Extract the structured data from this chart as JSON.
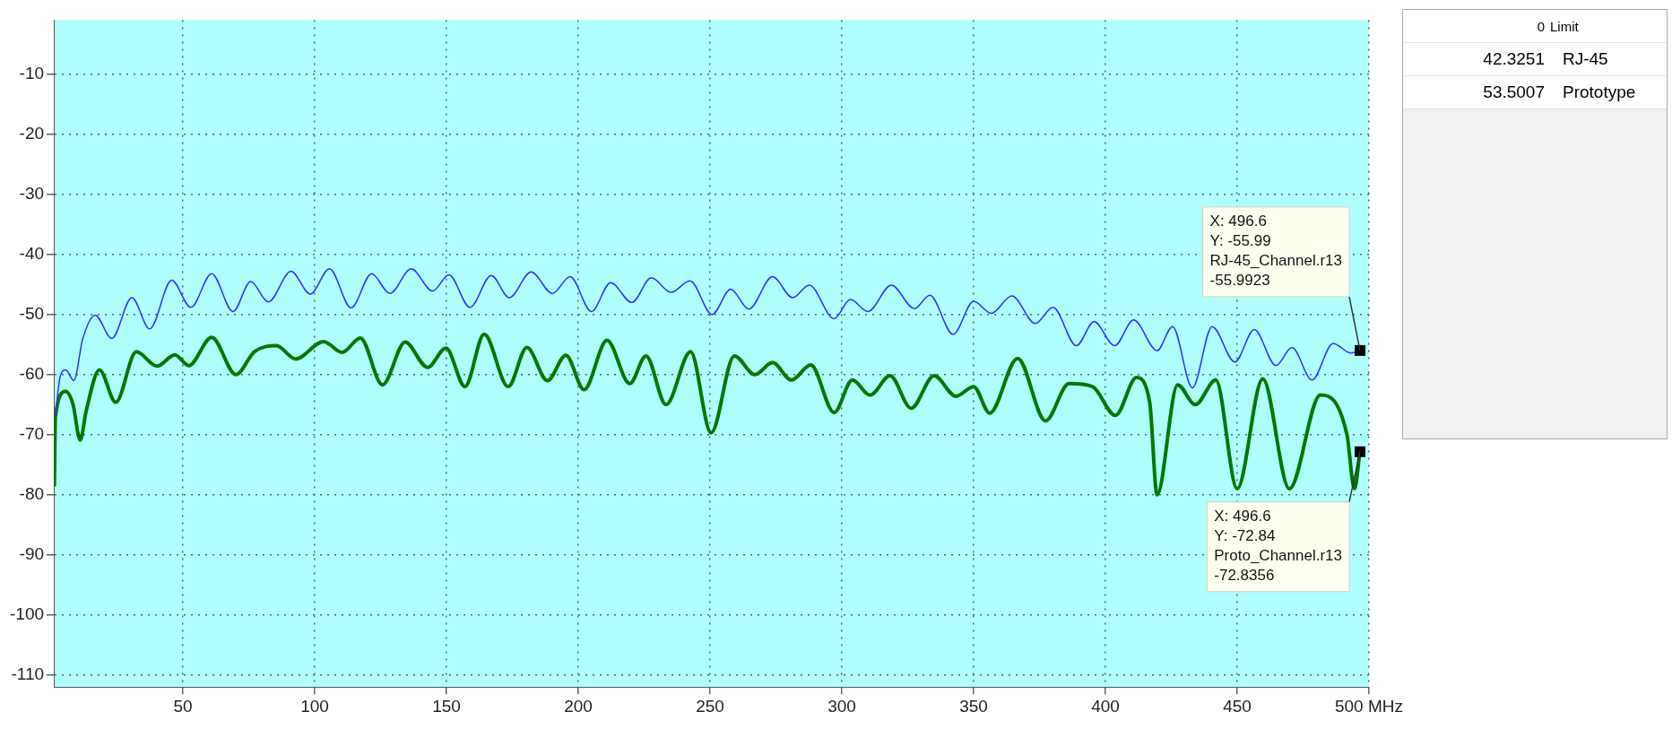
{
  "chart_data": {
    "type": "line",
    "xlim": [
      1,
      500
    ],
    "xticks": [
      50,
      100,
      150,
      200,
      250,
      300,
      350,
      400,
      450,
      {
        "value": 500,
        "label": "500 MHz"
      }
    ],
    "ylim": [
      -112,
      -1
    ],
    "yticks": [
      -10,
      -20,
      -30,
      -40,
      -50,
      -60,
      -70,
      -80,
      -90,
      -100,
      -110
    ],
    "grid": true,
    "legend": false,
    "marker": "none",
    "line_style": "solid",
    "series": [
      {
        "color": "#2f2fff",
        "x": [
          1.6,
          3.2,
          5.5,
          8.6,
          12,
          16.7,
          23,
          30.6,
          37.4,
          45.7,
          53,
          60.9,
          69,
          75.7,
          82.4,
          91,
          98.3,
          105.6,
          113.8,
          121.6,
          128.5,
          136.6,
          144.7,
          150.9,
          158.9,
          167,
          173.8,
          182.1,
          190.2,
          196.9,
          205,
          212.3,
          220.3,
          227.7,
          235.2,
          242.4,
          250.8,
          257.8,
          264.7,
          273.7,
          281.3,
          287.6,
          297.1,
          303.2,
          309.9,
          318.8,
          327.5,
          333.4,
          342.2,
          350,
          356.7,
          364.5,
          373.4,
          380.1,
          389,
          395.7,
          403.5,
          410.7,
          419.6,
          425.5,
          433,
          440.5,
          449.1,
          456.5,
          464.7,
          470.8,
          478.4,
          486.4,
          493.1,
          496.6
        ],
        "values": [
          -67,
          -60.8,
          -59.2,
          -61,
          -54,
          -50.1,
          -54,
          -47.2,
          -52.4,
          -44.3,
          -48.8,
          -43.2,
          -49.5,
          -44.5,
          -47.9,
          -42.8,
          -46.6,
          -42.4,
          -48.9,
          -43.2,
          -46.5,
          -42.4,
          -46.1,
          -43.4,
          -48.8,
          -43.5,
          -47.2,
          -42.9,
          -46.5,
          -43.7,
          -49.5,
          -44.7,
          -48,
          -43.9,
          -46.3,
          -44.4,
          -50,
          -45.8,
          -49.1,
          -43.7,
          -47.2,
          -45.1,
          -50.7,
          -47.5,
          -49.5,
          -45.1,
          -49,
          -46.8,
          -53.3,
          -47.8,
          -49.8,
          -46.9,
          -51.5,
          -48.8,
          -55.2,
          -51.2,
          -55.2,
          -50.9,
          -56,
          -52,
          -62.2,
          -52,
          -57.9,
          -52.5,
          -58.5,
          -55.5,
          -60.9,
          -54.8,
          -56.4,
          -56
        ]
      },
      {
        "color": "#007800",
        "x": [
          1.2,
          1.6,
          5.5,
          8.3,
          11,
          13.3,
          18.3,
          24.5,
          32.3,
          40.2,
          46.9,
          52.2,
          60.9,
          70.1,
          77.1,
          85.5,
          92.7,
          103.4,
          110.4,
          117.3,
          125.7,
          134.3,
          142.8,
          149.8,
          157,
          164.3,
          173.4,
          180.5,
          188.3,
          195.3,
          202.2,
          210.9,
          219.5,
          225.7,
          233.3,
          242.6,
          250.4,
          259.2,
          267,
          273.7,
          280.9,
          288.2,
          297.1,
          304,
          310.7,
          318.3,
          326.3,
          335,
          343.3,
          350,
          356.1,
          366.7,
          377.3,
          386.2,
          395.1,
          403.8,
          411.8,
          416.8,
          419.6,
          427.4,
          434.1,
          441.9,
          450,
          459.7,
          469.8,
          481.6,
          491.6,
          494.5,
          496.6
        ],
        "values": [
          -78.6,
          -67,
          -62.8,
          -65,
          -70.9,
          -66,
          -59.2,
          -64.6,
          -56.2,
          -58.6,
          -56.7,
          -58.5,
          -53.8,
          -60,
          -56.2,
          -55.2,
          -57.4,
          -54.5,
          -56.3,
          -53.9,
          -61.7,
          -54.6,
          -58.8,
          -55.6,
          -62,
          -53.3,
          -62,
          -55.5,
          -61,
          -56.8,
          -62.5,
          -54.3,
          -61.5,
          -56.9,
          -65,
          -56.2,
          -69.7,
          -56.9,
          -60,
          -58,
          -60.9,
          -58.4,
          -66.3,
          -60.9,
          -63.4,
          -60.2,
          -65.6,
          -60.2,
          -63.6,
          -62,
          -66.4,
          -57.3,
          -67.7,
          -61.5,
          -62,
          -66.8,
          -60.5,
          -64.6,
          -80,
          -61.7,
          -65,
          -60.9,
          -79,
          -60.7,
          -79,
          -63.4,
          -69.9,
          -79,
          -72.8
        ]
      }
    ],
    "annotations": [
      {
        "text": "X: 496.6\nY: -55.99\nRJ-45_Channel.r13\n-55.9923",
        "x": 496.6,
        "y": -55.99
      },
      {
        "text": "X: 496.6\nY: -72.84\nProto_Channel.r13\n-72.8356",
        "x": 496.6,
        "y": -72.84
      },
      "0 Limit",
      "42.3251 RJ-45",
      "53.5007 Prototype"
    ]
  }
}
